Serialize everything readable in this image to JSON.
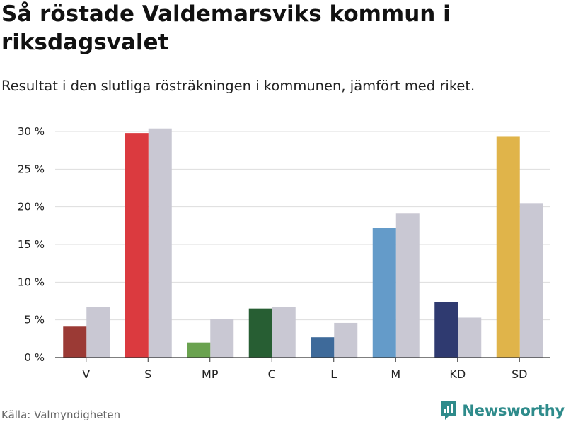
{
  "title": "Så röstade Valdemarsviks kommun i riksdagsvalet",
  "subtitle": "Resultat i den slutliga rösträkningen i kommunen, jämfört med riket.",
  "source": "Källa: Valmyndigheten",
  "brand": "Newsworthy",
  "colors": {
    "national": "#c9c8d3",
    "grid": "#dddddd",
    "axis": "#333333",
    "brand": "#2e8b8b"
  },
  "chart_data": {
    "type": "bar",
    "categories": [
      "V",
      "S",
      "MP",
      "C",
      "L",
      "M",
      "KD",
      "SD"
    ],
    "series": [
      {
        "name": "Valdemarsvik",
        "values": [
          4.1,
          29.8,
          2.0,
          6.5,
          2.7,
          17.2,
          7.4,
          29.3
        ],
        "colors": [
          "#9b3a35",
          "#db3a3f",
          "#6aa24f",
          "#275e33",
          "#3e6a9a",
          "#649bc9",
          "#2f3a70",
          "#e0b44a"
        ]
      },
      {
        "name": "Riket",
        "values": [
          6.7,
          30.4,
          5.1,
          6.7,
          4.6,
          19.1,
          5.3,
          20.5
        ],
        "color": "#c9c8d3"
      }
    ],
    "yticks": [
      0,
      5,
      10,
      15,
      20,
      25,
      30
    ],
    "ytick_labels": [
      "0 %",
      "5 %",
      "10 %",
      "15 %",
      "20 %",
      "25 %",
      "30 %"
    ],
    "ylim": [
      0,
      30
    ],
    "xlabel": "",
    "ylabel": "",
    "grid": true
  }
}
